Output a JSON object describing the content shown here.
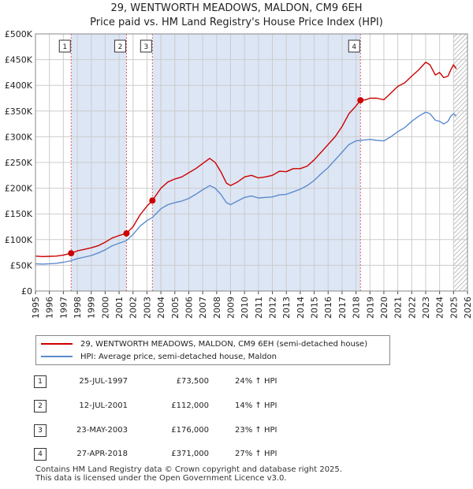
{
  "title": "29, WENTWORTH MEADOWS, MALDON, CM9 6EH",
  "subtitle": "Price paid vs. HM Land Registry's House Price Index (HPI)",
  "colors": {
    "property_line": "#cc0000",
    "hpi_line": "#5b8ccc",
    "shade": "#dde6f5",
    "grid": "#cccccc",
    "marker_line": "#e06060"
  },
  "chart_data": {
    "type": "line",
    "title": "29, WENTWORTH MEADOWS, MALDON, CM9 6EH",
    "subtitle": "Price paid vs. HM Land Registry's House Price Index (HPI)",
    "xlabel": "",
    "ylabel": "",
    "xlim": [
      1995,
      2026
    ],
    "ylim": [
      0,
      500000
    ],
    "grid": true,
    "y_ticks": [
      {
        "value": 0,
        "label": "£0"
      },
      {
        "value": 50000,
        "label": "£50K"
      },
      {
        "value": 100000,
        "label": "£100K"
      },
      {
        "value": 150000,
        "label": "£150K"
      },
      {
        "value": 200000,
        "label": "£200K"
      },
      {
        "value": 250000,
        "label": "£250K"
      },
      {
        "value": 300000,
        "label": "£300K"
      },
      {
        "value": 350000,
        "label": "£350K"
      },
      {
        "value": 400000,
        "label": "£400K"
      },
      {
        "value": 450000,
        "label": "£450K"
      },
      {
        "value": 500000,
        "label": "£500K"
      }
    ],
    "x_ticks": [
      "1995",
      "1996",
      "1997",
      "1998",
      "1999",
      "2000",
      "2001",
      "2002",
      "2003",
      "2004",
      "2005",
      "2006",
      "2007",
      "2008",
      "2009",
      "2010",
      "2011",
      "2012",
      "2013",
      "2014",
      "2015",
      "2016",
      "2017",
      "2018",
      "2019",
      "2020",
      "2021",
      "2022",
      "2023",
      "2024",
      "2025",
      "2026"
    ],
    "shaded_ranges": [
      [
        1997.56,
        2001.53
      ],
      [
        2003.39,
        2018.32
      ]
    ],
    "hatched_range": [
      2025.0,
      2026.0
    ],
    "series": [
      {
        "name": "29, WENTWORTH MEADOWS, MALDON, CM9 6EH (semi-detached house)",
        "color": "#cc0000",
        "points": [
          [
            1995.0,
            68000
          ],
          [
            1995.5,
            67000
          ],
          [
            1996.0,
            67500
          ],
          [
            1996.5,
            68000
          ],
          [
            1997.0,
            70000
          ],
          [
            1997.56,
            73500
          ],
          [
            1998.0,
            78000
          ],
          [
            1998.5,
            81000
          ],
          [
            1999.0,
            84000
          ],
          [
            1999.5,
            88000
          ],
          [
            2000.0,
            95000
          ],
          [
            2000.5,
            103000
          ],
          [
            2001.0,
            108000
          ],
          [
            2001.53,
            112000
          ],
          [
            2002.0,
            125000
          ],
          [
            2002.5,
            148000
          ],
          [
            2003.0,
            165000
          ],
          [
            2003.39,
            176000
          ],
          [
            2004.0,
            200000
          ],
          [
            2004.5,
            212000
          ],
          [
            2005.0,
            218000
          ],
          [
            2005.5,
            222000
          ],
          [
            2006.0,
            230000
          ],
          [
            2006.5,
            238000
          ],
          [
            2007.0,
            248000
          ],
          [
            2007.5,
            258000
          ],
          [
            2007.9,
            250000
          ],
          [
            2008.3,
            232000
          ],
          [
            2008.7,
            210000
          ],
          [
            2009.0,
            205000
          ],
          [
            2009.5,
            212000
          ],
          [
            2010.0,
            222000
          ],
          [
            2010.5,
            225000
          ],
          [
            2011.0,
            220000
          ],
          [
            2011.5,
            222000
          ],
          [
            2012.0,
            225000
          ],
          [
            2012.5,
            233000
          ],
          [
            2013.0,
            232000
          ],
          [
            2013.5,
            238000
          ],
          [
            2014.0,
            238000
          ],
          [
            2014.5,
            243000
          ],
          [
            2015.0,
            255000
          ],
          [
            2015.5,
            270000
          ],
          [
            2016.0,
            285000
          ],
          [
            2016.5,
            300000
          ],
          [
            2017.0,
            320000
          ],
          [
            2017.5,
            345000
          ],
          [
            2018.0,
            360000
          ],
          [
            2018.32,
            371000
          ],
          [
            2018.7,
            372000
          ],
          [
            2019.0,
            375000
          ],
          [
            2019.5,
            375000
          ],
          [
            2020.0,
            372000
          ],
          [
            2020.5,
            385000
          ],
          [
            2021.0,
            398000
          ],
          [
            2021.5,
            405000
          ],
          [
            2022.0,
            418000
          ],
          [
            2022.5,
            430000
          ],
          [
            2023.0,
            445000
          ],
          [
            2023.3,
            440000
          ],
          [
            2023.7,
            420000
          ],
          [
            2024.0,
            425000
          ],
          [
            2024.3,
            415000
          ],
          [
            2024.6,
            418000
          ],
          [
            2024.8,
            430000
          ],
          [
            2025.0,
            440000
          ],
          [
            2025.2,
            432000
          ]
        ]
      },
      {
        "name": "HPI: Average price, semi-detached house, Maldon",
        "color": "#5b8ccc",
        "points": [
          [
            1995.0,
            53000
          ],
          [
            1995.5,
            52500
          ],
          [
            1996.0,
            53000
          ],
          [
            1996.5,
            54000
          ],
          [
            1997.0,
            56000
          ],
          [
            1997.56,
            59000
          ],
          [
            1998.0,
            63000
          ],
          [
            1998.5,
            66000
          ],
          [
            1999.0,
            69000
          ],
          [
            1999.5,
            74000
          ],
          [
            2000.0,
            80000
          ],
          [
            2000.5,
            88000
          ],
          [
            2001.0,
            93000
          ],
          [
            2001.53,
            98000
          ],
          [
            2002.0,
            110000
          ],
          [
            2002.5,
            126000
          ],
          [
            2003.0,
            137000
          ],
          [
            2003.39,
            143000
          ],
          [
            2004.0,
            160000
          ],
          [
            2004.5,
            168000
          ],
          [
            2005.0,
            172000
          ],
          [
            2005.5,
            175000
          ],
          [
            2006.0,
            180000
          ],
          [
            2006.5,
            188000
          ],
          [
            2007.0,
            197000
          ],
          [
            2007.5,
            205000
          ],
          [
            2007.9,
            200000
          ],
          [
            2008.3,
            188000
          ],
          [
            2008.7,
            172000
          ],
          [
            2009.0,
            168000
          ],
          [
            2009.5,
            175000
          ],
          [
            2010.0,
            182000
          ],
          [
            2010.5,
            185000
          ],
          [
            2011.0,
            181000
          ],
          [
            2011.5,
            182000
          ],
          [
            2012.0,
            183000
          ],
          [
            2012.5,
            187000
          ],
          [
            2013.0,
            188000
          ],
          [
            2013.5,
            193000
          ],
          [
            2014.0,
            198000
          ],
          [
            2014.5,
            205000
          ],
          [
            2015.0,
            215000
          ],
          [
            2015.5,
            228000
          ],
          [
            2016.0,
            240000
          ],
          [
            2016.5,
            255000
          ],
          [
            2017.0,
            270000
          ],
          [
            2017.5,
            285000
          ],
          [
            2018.0,
            292000
          ],
          [
            2018.32,
            293000
          ],
          [
            2018.7,
            294000
          ],
          [
            2019.0,
            295000
          ],
          [
            2019.5,
            293000
          ],
          [
            2020.0,
            292000
          ],
          [
            2020.5,
            300000
          ],
          [
            2021.0,
            310000
          ],
          [
            2021.5,
            318000
          ],
          [
            2022.0,
            330000
          ],
          [
            2022.5,
            340000
          ],
          [
            2023.0,
            348000
          ],
          [
            2023.3,
            345000
          ],
          [
            2023.7,
            332000
          ],
          [
            2024.0,
            330000
          ],
          [
            2024.3,
            325000
          ],
          [
            2024.6,
            330000
          ],
          [
            2024.8,
            340000
          ],
          [
            2025.0,
            345000
          ],
          [
            2025.2,
            340000
          ]
        ]
      }
    ],
    "sale_markers": [
      {
        "label": "1",
        "x": 1997.56,
        "value": 73500
      },
      {
        "label": "2",
        "x": 2001.53,
        "value": 112000
      },
      {
        "label": "3",
        "x": 2003.39,
        "value": 176000
      },
      {
        "label": "4",
        "x": 2018.32,
        "value": 371000
      }
    ]
  },
  "legend": {
    "property_label": "29, WENTWORTH MEADOWS, MALDON, CM9 6EH (semi-detached house)",
    "hpi_label": "HPI: Average price, semi-detached house, Maldon"
  },
  "sales": [
    {
      "num": "1",
      "date": "25-JUL-1997",
      "price": "£73,500",
      "hpi": "24% ↑ HPI"
    },
    {
      "num": "2",
      "date": "12-JUL-2001",
      "price": "£112,000",
      "hpi": "14% ↑ HPI"
    },
    {
      "num": "3",
      "date": "23-MAY-2003",
      "price": "£176,000",
      "hpi": "23% ↑ HPI"
    },
    {
      "num": "4",
      "date": "27-APR-2018",
      "price": "£371,000",
      "hpi": "27% ↑ HPI"
    }
  ],
  "footer": {
    "line1": "Contains HM Land Registry data © Crown copyright and database right 2025.",
    "line2": "This data is licensed under the Open Government Licence v3.0."
  }
}
